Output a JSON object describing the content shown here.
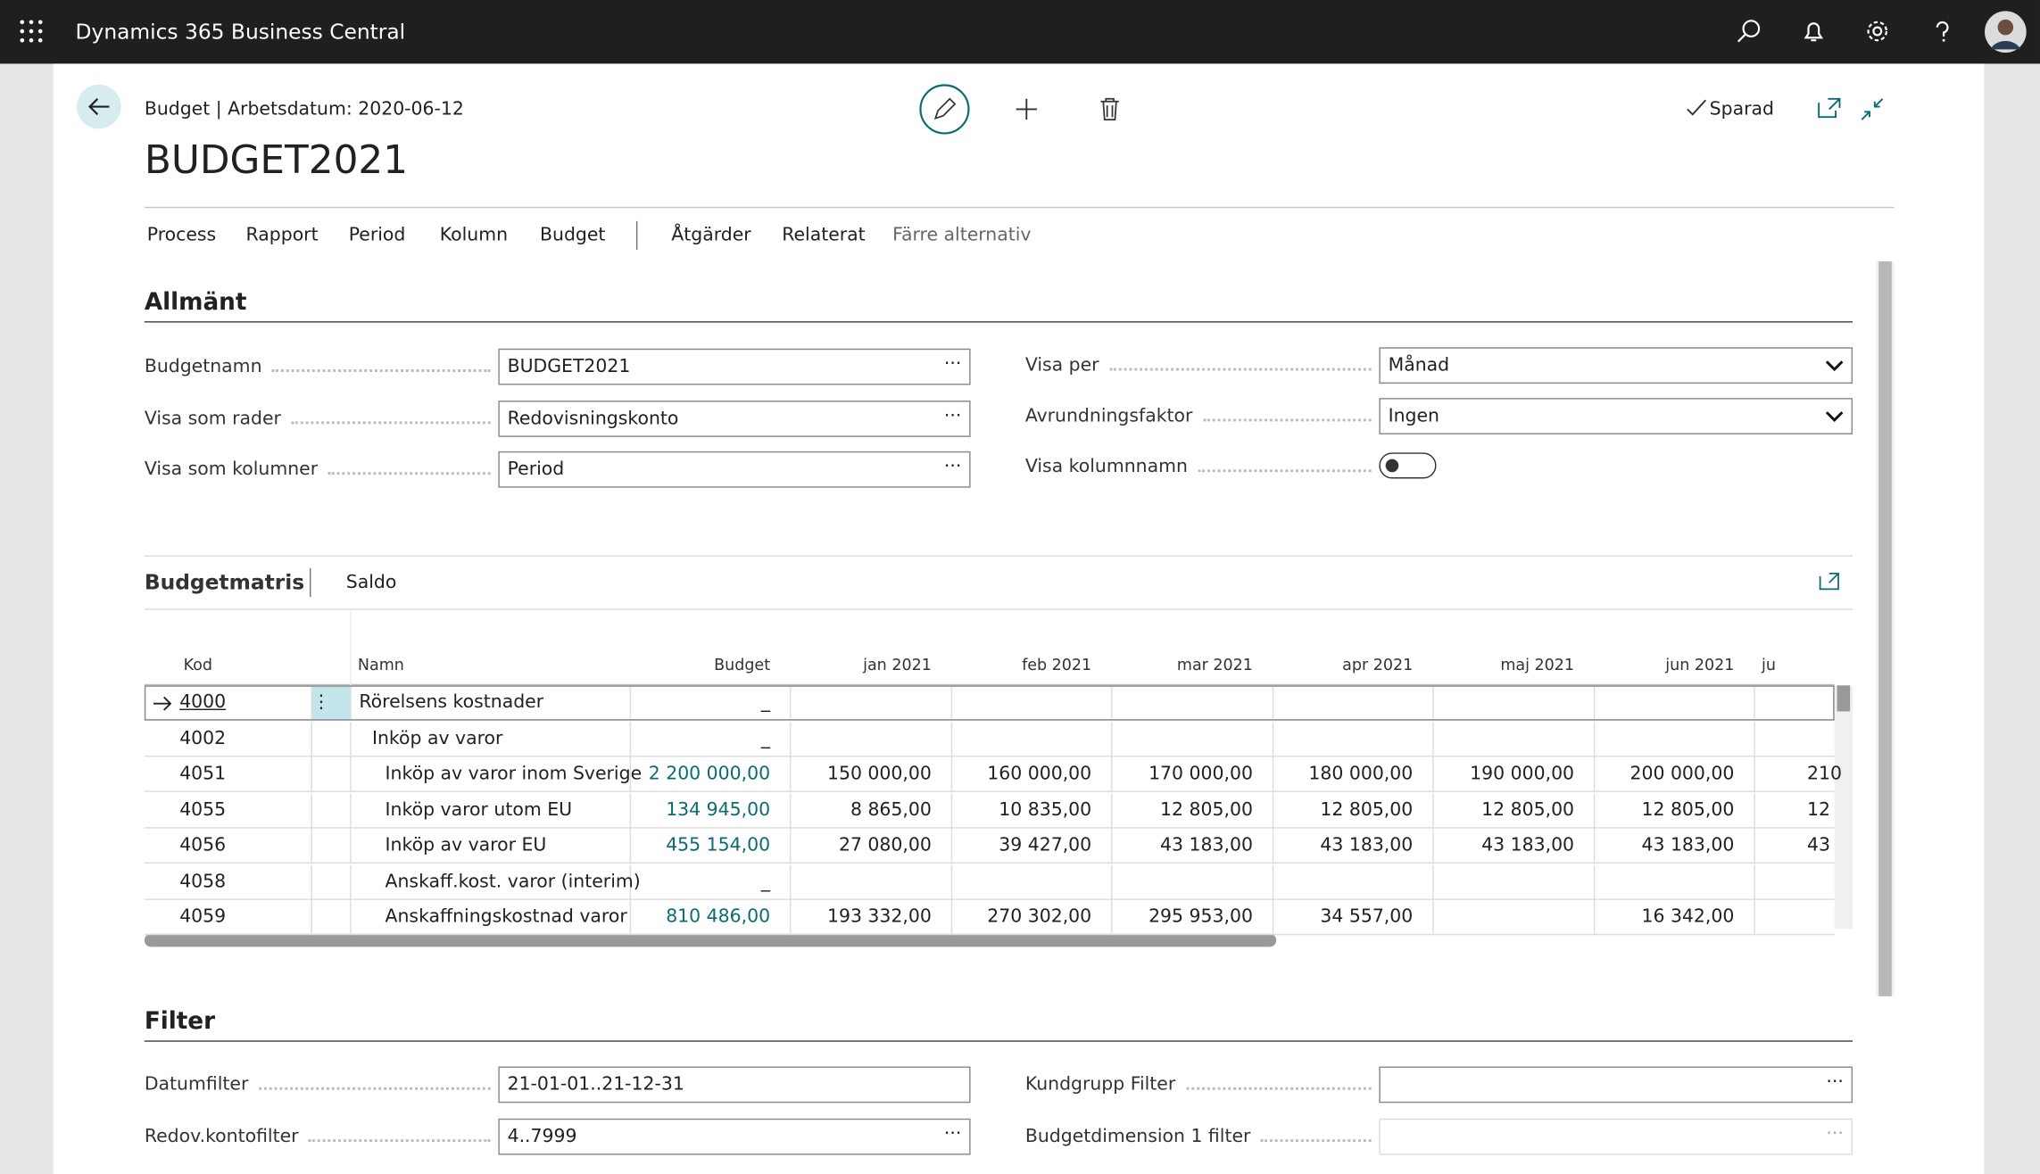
{
  "header": {
    "app_title": "Dynamics 365 Business Central"
  },
  "page": {
    "breadcrumb": "Budget | Arbetsdatum: 2020-06-12",
    "title": "BUDGET2021",
    "status": "Sparad"
  },
  "menu": [
    "Process",
    "Rapport",
    "Period",
    "Kolumn",
    "Budget",
    "Åtgärder",
    "Relaterat",
    "Färre alternativ"
  ],
  "general": {
    "heading": "Allmänt",
    "left": [
      {
        "label": "Budgetnamn",
        "value": "BUDGET2021"
      },
      {
        "label": "Visa som rader",
        "value": "Redovisningskonto"
      },
      {
        "label": "Visa som kolumner",
        "value": "Period"
      }
    ],
    "right": [
      {
        "label": "Visa per",
        "value": "Månad"
      },
      {
        "label": "Avrundningsfaktor",
        "value": "Ingen"
      },
      {
        "label": "Visa kolumnnamn"
      }
    ]
  },
  "matrix": {
    "heading": "Budgetmatris",
    "tab": "Saldo",
    "columns": [
      "Kod",
      "Namn",
      "Budget",
      "jan 2021",
      "feb 2021",
      "mar 2021",
      "apr 2021",
      "maj 2021",
      "jun 2021",
      "ju"
    ],
    "rows": [
      [
        "4000",
        "Rörelsens kostnader",
        "_",
        null,
        null,
        null,
        null,
        null,
        null,
        null
      ],
      [
        "4002",
        "Inköp av varor",
        "_",
        null,
        null,
        null,
        null,
        null,
        null,
        null
      ],
      [
        "4051",
        "Inköp av varor inom Sverige",
        "2 200 000,00",
        "150 000,00",
        "160 000,00",
        "170 000,00",
        "180 000,00",
        "190 000,00",
        "200 000,00",
        "210"
      ],
      [
        "4055",
        "Inköp varor utom EU",
        "134 945,00",
        "8 865,00",
        "10 835,00",
        "12 805,00",
        "12 805,00",
        "12 805,00",
        "12 805,00",
        "12"
      ],
      [
        "4056",
        "Inköp av varor EU",
        "455 154,00",
        "27 080,00",
        "39 427,00",
        "43 183,00",
        "43 183,00",
        "43 183,00",
        "43 183,00",
        "43"
      ],
      [
        "4058",
        "Anskaff.kost. varor (interim)",
        "_",
        null,
        null,
        null,
        null,
        null,
        null,
        null
      ],
      [
        "4059",
        "Anskaffningskostnad varor",
        "810 486,00",
        "193 332,00",
        "270 302,00",
        "295 953,00",
        "34 557,00",
        null,
        "16 342,00",
        null
      ]
    ]
  },
  "filter": {
    "heading": "Filter",
    "left": [
      {
        "label": "Datumfilter",
        "value": "21-01-01..21-12-31"
      },
      {
        "label": "Redov.kontofilter",
        "value": "4..7999"
      }
    ],
    "right": [
      {
        "label": "Kundgrupp Filter"
      },
      {
        "label": "Budgetdimension 1 filter"
      }
    ]
  }
}
